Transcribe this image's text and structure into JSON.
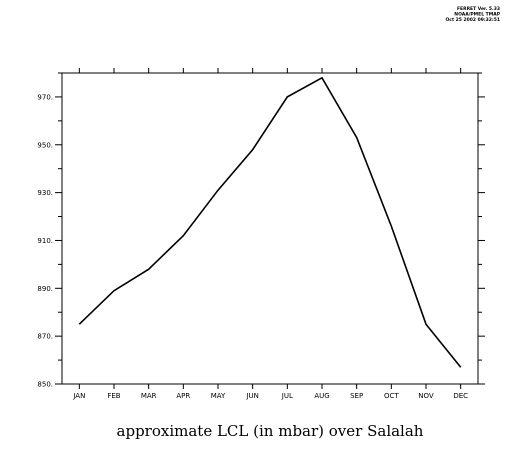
{
  "header": {
    "ferret_lines": [
      "FERRET Ver. 5.33",
      "NOAA/PMEL TMAP",
      "Oct 25 2002 09:32:51"
    ]
  },
  "chart_data": {
    "type": "line",
    "title": "approximate LCL (in mbar) over Salalah",
    "xlabel": "",
    "ylabel": "",
    "categories": [
      "JAN",
      "FEB",
      "MAR",
      "APR",
      "MAY",
      "JUN",
      "JUL",
      "AUG",
      "SEP",
      "OCT",
      "NOV",
      "DEC"
    ],
    "series": [
      {
        "values": [
          875,
          889,
          898,
          912,
          931,
          948,
          970,
          978,
          953,
          916,
          875,
          857
        ]
      }
    ],
    "ylim": [
      850,
      980
    ],
    "yticks": [
      850,
      870,
      890,
      910,
      930,
      950,
      970
    ],
    "ytick_labels": [
      "850.",
      "870.",
      "890.",
      "910.",
      "930.",
      "950.",
      "970."
    ],
    "grid": false,
    "legend": "none"
  }
}
